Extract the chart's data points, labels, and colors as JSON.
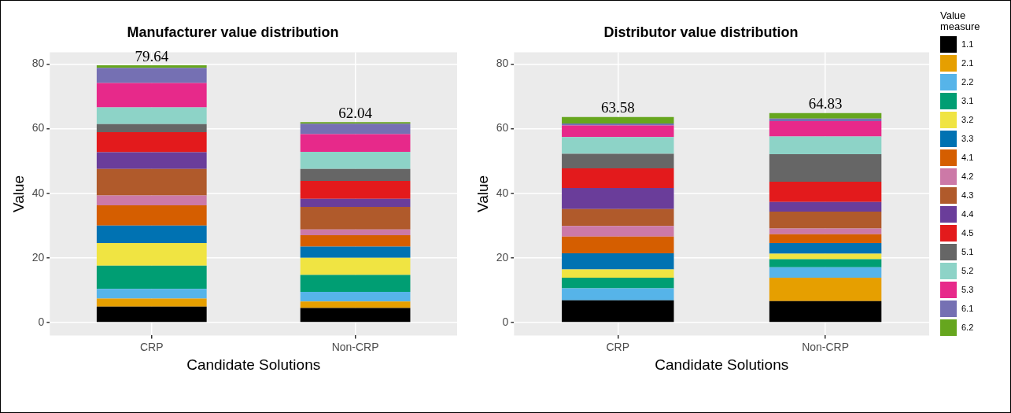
{
  "chart_data": [
    {
      "type": "bar",
      "title": "Manufacturer value distribution",
      "xlabel": "Candidate Solutions",
      "ylabel": "Value",
      "categories": [
        "CRP",
        "Non-CRP"
      ],
      "stacked": true,
      "ylim": [
        -4,
        83.6
      ],
      "yticks": [
        0,
        20,
        40,
        60,
        80
      ],
      "grid": true,
      "legend": false,
      "totals": [
        "79.64",
        "62.04"
      ],
      "series": [
        {
          "color": "#000000",
          "values": [
            4.9,
            4.5
          ]
        },
        {
          "color": "#e69f00",
          "values": [
            2.5,
            2.0
          ]
        },
        {
          "color": "#56b4e9",
          "values": [
            3.0,
            3.0
          ]
        },
        {
          "color": "#009e73",
          "values": [
            7.2,
            5.2
          ]
        },
        {
          "color": "#f0e442",
          "values": [
            7.0,
            5.3
          ]
        },
        {
          "color": "#0072b2",
          "values": [
            5.4,
            3.5
          ]
        },
        {
          "color": "#d55e00",
          "values": [
            6.3,
            3.5
          ]
        },
        {
          "color": "#cc79a7",
          "values": [
            3.0,
            1.8
          ]
        },
        {
          "color": "#b05a2b",
          "values": [
            8.2,
            7.0
          ]
        },
        {
          "color": "#6a3d9a",
          "values": [
            5.2,
            2.5
          ]
        },
        {
          "color": "#e31a1c",
          "values": [
            6.2,
            5.5
          ]
        },
        {
          "color": "#666666",
          "values": [
            2.5,
            3.7
          ]
        },
        {
          "color": "#8dd3c7",
          "values": [
            5.2,
            5.3
          ]
        },
        {
          "color": "#e7298a",
          "values": [
            7.5,
            5.5
          ]
        },
        {
          "color": "#7570b3",
          "values": [
            4.7,
            3.2
          ]
        },
        {
          "color": "#66a61e",
          "values": [
            0.8,
            0.5
          ]
        }
      ]
    },
    {
      "type": "bar",
      "title": "Distributor value distribution",
      "xlabel": "Candidate Solutions",
      "ylabel": "Value",
      "categories": [
        "CRP",
        "Non-CRP"
      ],
      "stacked": true,
      "ylim": [
        -4,
        83.6
      ],
      "yticks": [
        0,
        20,
        40,
        60,
        80
      ],
      "grid": true,
      "legend": "right",
      "legend_title": "Value measure",
      "totals": [
        "63.58",
        "64.83"
      ],
      "series": [
        {
          "name": "1.1",
          "color": "#000000",
          "values": [
            6.9,
            6.6
          ]
        },
        {
          "name": "2.1",
          "color": "#e69f00",
          "values": [
            0,
            7.3
          ]
        },
        {
          "name": "2.2",
          "color": "#56b4e9",
          "values": [
            3.7,
            3.2
          ]
        },
        {
          "name": "3.1",
          "color": "#009e73",
          "values": [
            3.3,
            2.5
          ]
        },
        {
          "name": "3.2",
          "color": "#f0e442",
          "values": [
            2.5,
            1.7
          ]
        },
        {
          "name": "3.3",
          "color": "#0072b2",
          "values": [
            5.0,
            3.3
          ]
        },
        {
          "name": "4.1",
          "color": "#d55e00",
          "values": [
            5.2,
            2.7
          ]
        },
        {
          "name": "4.2",
          "color": "#cc79a7",
          "values": [
            3.3,
            1.8
          ]
        },
        {
          "name": "4.3",
          "color": "#b05a2b",
          "values": [
            5.2,
            5.2
          ]
        },
        {
          "name": "4.4",
          "color": "#6a3d9a",
          "values": [
            6.5,
            3.0
          ]
        },
        {
          "name": "4.5",
          "color": "#e31a1c",
          "values": [
            6.1,
            6.3
          ]
        },
        {
          "name": "5.1",
          "color": "#666666",
          "values": [
            4.5,
            8.5
          ]
        },
        {
          "name": "5.2",
          "color": "#8dd3c7",
          "values": [
            5.2,
            5.5
          ]
        },
        {
          "name": "5.3",
          "color": "#e7298a",
          "values": [
            3.6,
            4.7
          ]
        },
        {
          "name": "6.1",
          "color": "#7570b3",
          "values": [
            0.6,
            0.8
          ]
        },
        {
          "name": "6.2",
          "color": "#66a61e",
          "values": [
            2.0,
            1.7
          ]
        }
      ]
    }
  ]
}
